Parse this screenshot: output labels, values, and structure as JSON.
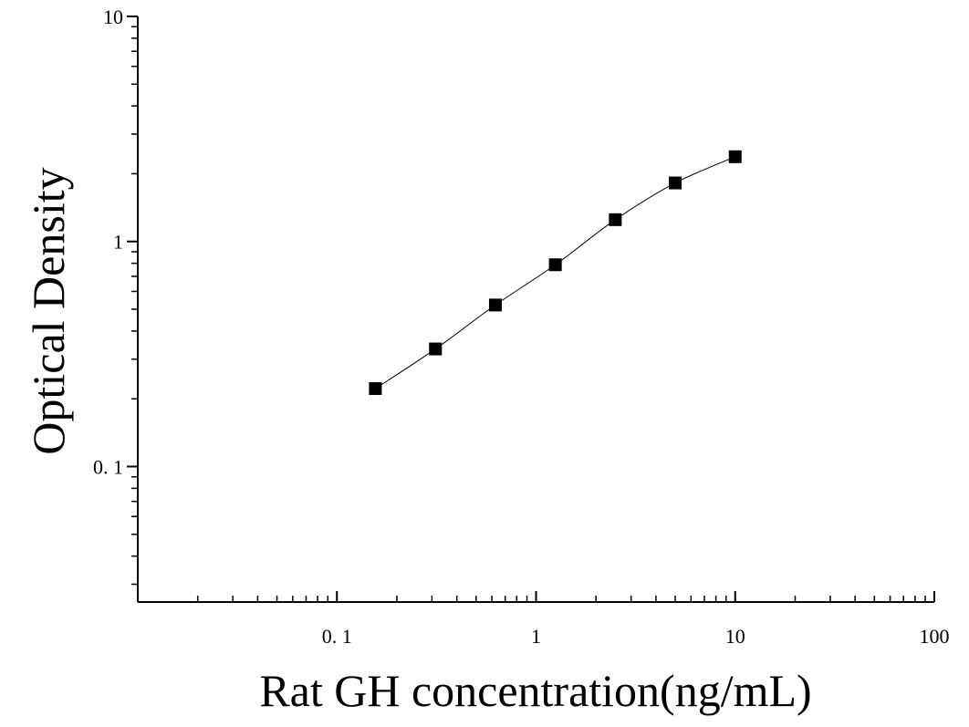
{
  "chart_data": {
    "type": "scatter",
    "xscale": "log",
    "yscale": "log",
    "xlim": [
      0.01,
      100
    ],
    "ylim": [
      0.025,
      10
    ],
    "xlabel": "Rat GH concentration(ng/mL)",
    "ylabel": "Optical Density",
    "xticks": [
      {
        "value": 0.1,
        "label": "0. 1"
      },
      {
        "value": 1,
        "label": "1"
      },
      {
        "value": 10,
        "label": "10"
      },
      {
        "value": 100,
        "label": "100"
      }
    ],
    "yticks": [
      {
        "value": 0.1,
        "label": "0. 1"
      },
      {
        "value": 1,
        "label": "1"
      },
      {
        "value": 10,
        "label": "10"
      }
    ],
    "grid": false,
    "series": [
      {
        "x": [
          0.156,
          0.3125,
          0.625,
          1.25,
          2.5,
          5,
          10
        ],
        "y": [
          0.222,
          0.333,
          0.522,
          0.788,
          1.25,
          1.82,
          2.38
        ],
        "marker": "square",
        "fit_line": true,
        "color": "#000000"
      }
    ]
  }
}
